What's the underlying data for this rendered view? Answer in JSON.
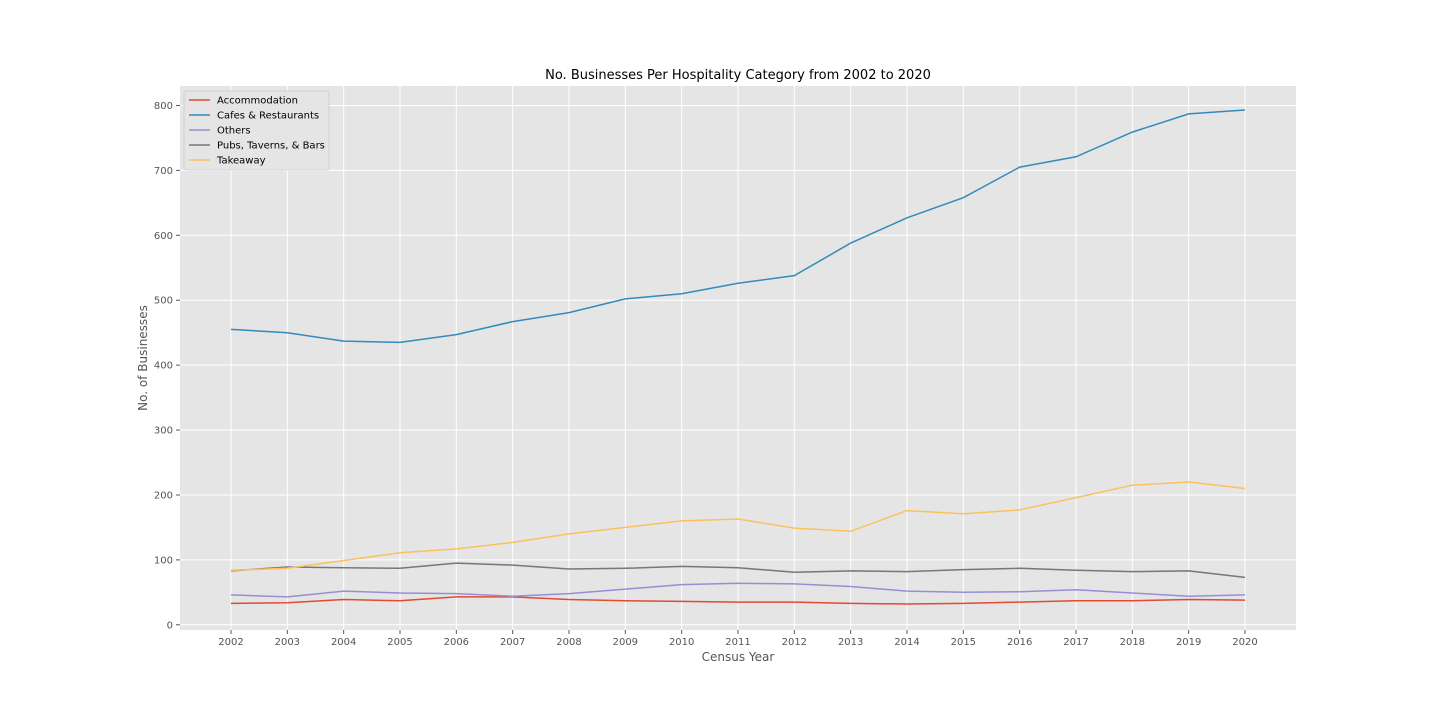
{
  "chart_data": {
    "type": "line",
    "title": "No. Businesses Per Hospitality Category from 2002 to 2020",
    "xlabel": "Census Year",
    "ylabel": "No. of Businesses",
    "x": [
      "2002",
      "2003",
      "2004",
      "2005",
      "2006",
      "2007",
      "2008",
      "2009",
      "2010",
      "2011",
      "2012",
      "2013",
      "2014",
      "2015",
      "2016",
      "2017",
      "2018",
      "2019",
      "2020"
    ],
    "ylim": [
      -8,
      830
    ],
    "yticks": [
      "0",
      "100",
      "200",
      "300",
      "400",
      "500",
      "600",
      "700",
      "800"
    ],
    "grid": true,
    "legend_position": "top-left",
    "series": [
      {
        "name": "Accommodation",
        "color": "#E24A33",
        "values": [
          33,
          34,
          39,
          37,
          43,
          43,
          39,
          37,
          36,
          35,
          35,
          33,
          32,
          33,
          35,
          37,
          37,
          39,
          38
        ]
      },
      {
        "name": "Cafes & Restaurants",
        "color": "#348ABD",
        "values": [
          455,
          450,
          437,
          435,
          447,
          467,
          481,
          502,
          510,
          526,
          538,
          588,
          627,
          658,
          705,
          721,
          759,
          787,
          793
        ]
      },
      {
        "name": "Others",
        "color": "#988ED5",
        "values": [
          46,
          43,
          52,
          49,
          48,
          44,
          48,
          55,
          62,
          64,
          63,
          59,
          52,
          50,
          51,
          54,
          49,
          44,
          46
        ]
      },
      {
        "name": "Pubs, Taverns, & Bars",
        "color": "#777777",
        "values": [
          83,
          89,
          88,
          87,
          95,
          92,
          86,
          87,
          90,
          88,
          81,
          83,
          82,
          85,
          87,
          84,
          82,
          83,
          73
        ]
      },
      {
        "name": "Takeaway",
        "color": "#FBC15E",
        "values": [
          84,
          87,
          99,
          111,
          117,
          127,
          140,
          150,
          160,
          163,
          149,
          144,
          176,
          171,
          177,
          196,
          215,
          220,
          210
        ]
      }
    ]
  }
}
